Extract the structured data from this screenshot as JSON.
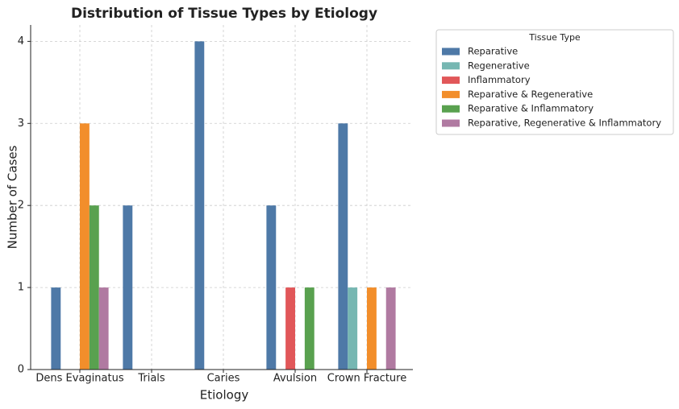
{
  "chart_data": {
    "type": "bar",
    "title": "Distribution of Tissue Types by Etiology",
    "xlabel": "Etiology",
    "ylabel": "Number of Cases",
    "categories": [
      "Dens Evaginatus",
      "Trials",
      "Caries",
      "Avulsion",
      "Crown Fracture"
    ],
    "series": [
      {
        "name": "Reparative",
        "color": "#4e79a7",
        "values": [
          1,
          2,
          4,
          2,
          3
        ]
      },
      {
        "name": "Regenerative",
        "color": "#76b7b2",
        "values": [
          0,
          0,
          0,
          0,
          1
        ]
      },
      {
        "name": "Inflammatory",
        "color": "#e15759",
        "values": [
          0,
          0,
          0,
          1,
          0
        ]
      },
      {
        "name": "Reparative & Regenerative",
        "color": "#f28e2b",
        "values": [
          3,
          0,
          0,
          0,
          1
        ]
      },
      {
        "name": "Reparative & Inflammatory",
        "color": "#59a14f",
        "values": [
          2,
          0,
          0,
          1,
          0
        ]
      },
      {
        "name": "Reparative, Regenerative & Inflammatory",
        "color": "#b07aa1",
        "values": [
          1,
          0,
          0,
          0,
          1
        ]
      }
    ],
    "legend_title": "Tissue Type",
    "ylim": [
      0,
      4.2
    ],
    "yticks": [
      0,
      1,
      2,
      3,
      4
    ],
    "grid": true
  }
}
